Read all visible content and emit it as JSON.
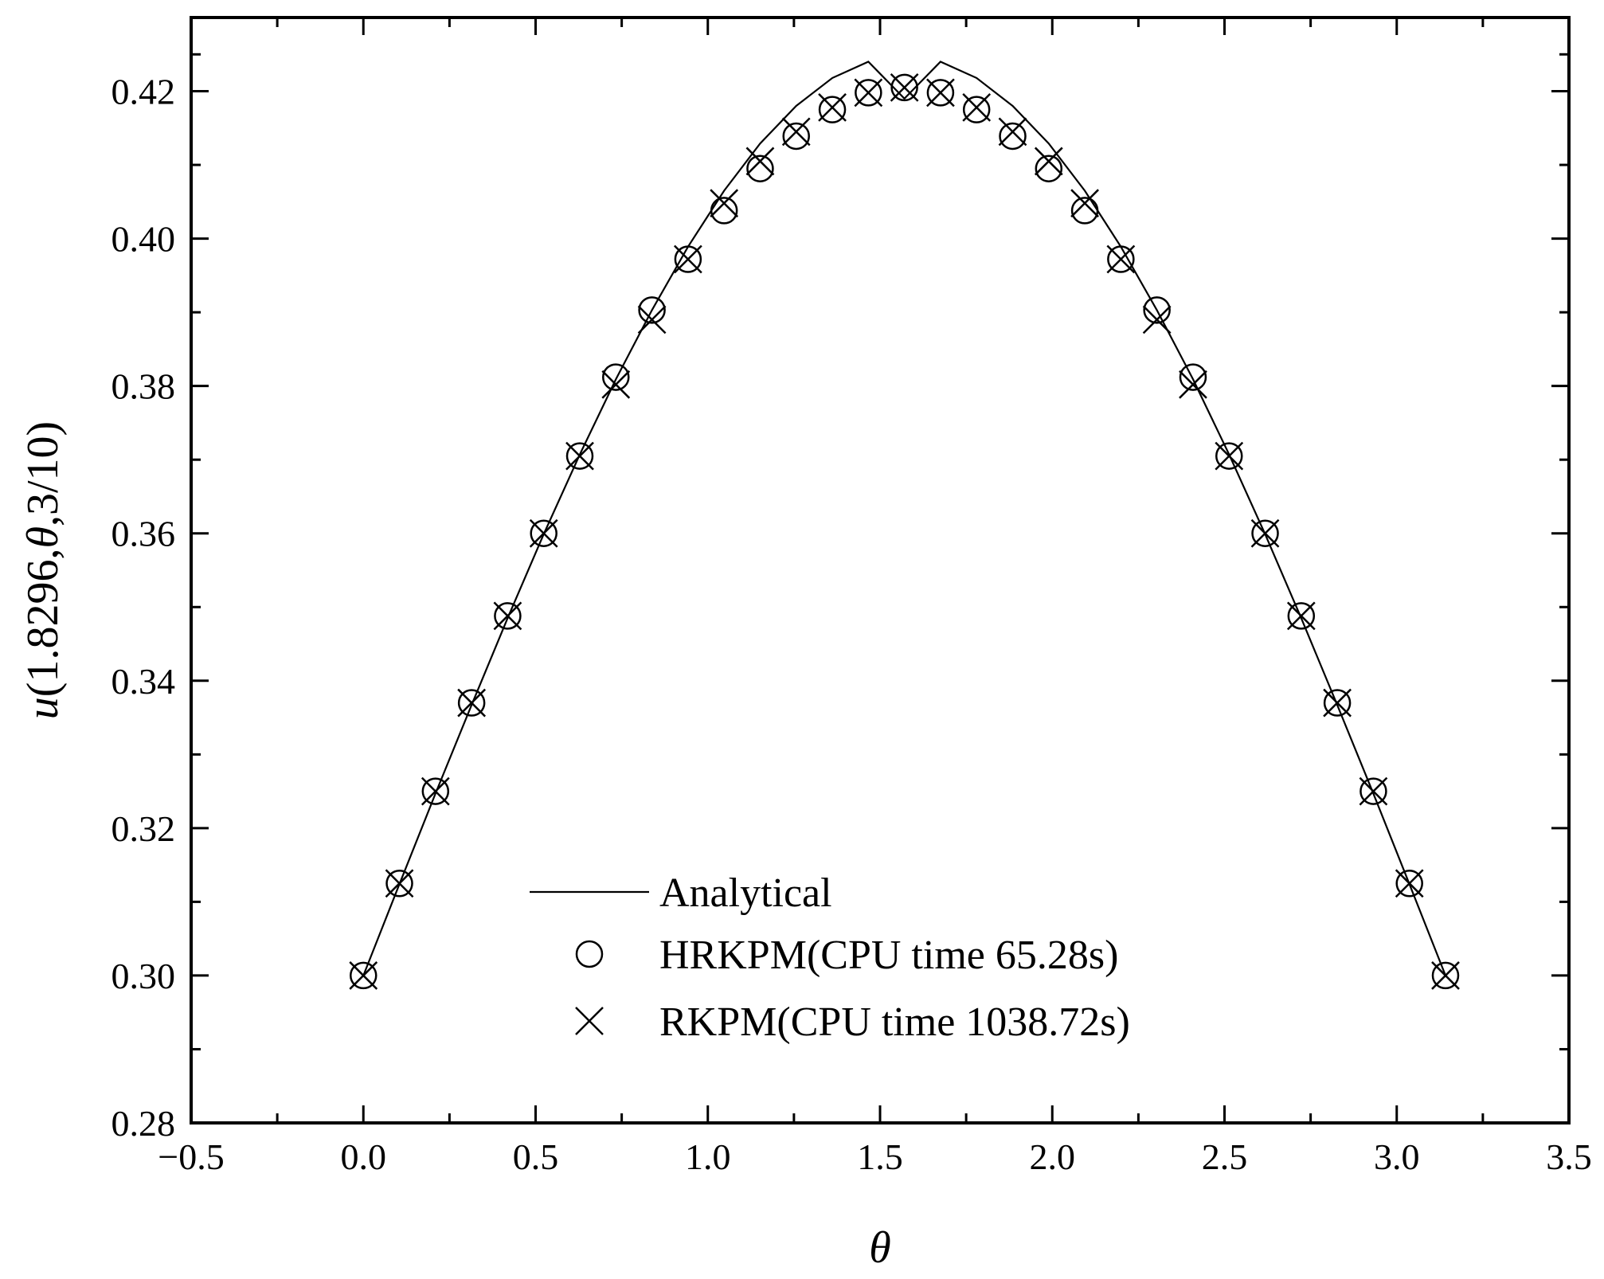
{
  "chart_data": {
    "type": "line",
    "xlabel": "θ",
    "ylabel": {
      "parts": [
        {
          "text": "u",
          "italic": true
        },
        {
          "text": "(1.8296,",
          "italic": false
        },
        {
          "text": "θ",
          "italic": true
        },
        {
          "text": ",3/10)",
          "italic": false
        }
      ]
    },
    "xlim": [
      -0.5,
      3.5
    ],
    "ylim": [
      0.28,
      0.43
    ],
    "xticks": [
      -0.5,
      0.0,
      0.5,
      1.0,
      1.5,
      2.0,
      2.5,
      3.0,
      3.5
    ],
    "xtick_labels": [
      "−0.5",
      "0.0",
      "0.5",
      "1.0",
      "1.5",
      "2.0",
      "2.5",
      "3.0",
      "3.5"
    ],
    "yticks": [
      0.28,
      0.3,
      0.32,
      0.34,
      0.36,
      0.38,
      0.4,
      0.42
    ],
    "ytick_labels": [
      "0.28",
      "0.30",
      "0.32",
      "0.34",
      "0.36",
      "0.38",
      "0.40",
      "0.42"
    ],
    "grid": false,
    "legend_position": "bottom-center",
    "series": [
      {
        "name": "Analytical",
        "style": "line",
        "color": "#000000",
        "x": [
          0.0,
          0.1047,
          0.2094,
          0.3142,
          0.4189,
          0.5236,
          0.6283,
          0.733,
          0.8378,
          0.9425,
          1.0472,
          1.1519,
          1.2566,
          1.3614,
          1.4661,
          1.5708,
          1.6755,
          1.7802,
          1.885,
          1.9897,
          2.0944,
          2.1991,
          2.3038,
          2.4086,
          2.5133,
          2.618,
          2.7227,
          2.8274,
          2.9322,
          3.0369,
          3.1416
        ],
        "y": [
          0.3,
          0.3124,
          0.3247,
          0.3367,
          0.3485,
          0.3599,
          0.3707,
          0.3809,
          0.3903,
          0.3989,
          0.4065,
          0.4129,
          0.418,
          0.4218,
          0.424,
          0.419,
          0.424,
          0.4218,
          0.418,
          0.4129,
          0.4065,
          0.3989,
          0.3903,
          0.3809,
          0.3707,
          0.3599,
          0.3485,
          0.3367,
          0.3247,
          0.3124,
          0.3
        ]
      },
      {
        "name": "HRKPM(CPU time 65.28s)",
        "style": "circle",
        "color": "#000000",
        "x": [
          0.0,
          0.1047,
          0.2094,
          0.3142,
          0.4189,
          0.5236,
          0.6283,
          0.733,
          0.8378,
          0.9425,
          1.0472,
          1.1519,
          1.2566,
          1.3614,
          1.4661,
          1.5708,
          1.6755,
          1.7802,
          1.885,
          1.9897,
          2.0944,
          2.1991,
          2.3038,
          2.4086,
          2.5133,
          2.618,
          2.7227,
          2.8274,
          2.9322,
          3.0369,
          3.1416
        ],
        "y": [
          0.3,
          0.3125,
          0.325,
          0.337,
          0.3488,
          0.36,
          0.3705,
          0.3812,
          0.3903,
          0.3972,
          0.4038,
          0.4095,
          0.4139,
          0.4175,
          0.4198,
          0.4205,
          0.4198,
          0.4175,
          0.4139,
          0.4095,
          0.4038,
          0.3972,
          0.3903,
          0.3812,
          0.3705,
          0.36,
          0.3488,
          0.337,
          0.325,
          0.3125,
          0.3
        ]
      },
      {
        "name": "RKPM(CPU time 1038.72s)",
        "style": "cross",
        "color": "#000000",
        "x": [
          0.0,
          0.1047,
          0.2094,
          0.3142,
          0.4189,
          0.5236,
          0.6283,
          0.733,
          0.8378,
          0.9425,
          1.0472,
          1.1519,
          1.2566,
          1.3614,
          1.4661,
          1.5708,
          1.6755,
          1.7802,
          1.885,
          1.9897,
          2.0944,
          2.1991,
          2.3038,
          2.4086,
          2.5133,
          2.618,
          2.7227,
          2.8274,
          2.9322,
          3.0369,
          3.1416
        ],
        "y": [
          0.3,
          0.3125,
          0.325,
          0.337,
          0.3488,
          0.36,
          0.3705,
          0.3802,
          0.389,
          0.3972,
          0.4048,
          0.4105,
          0.4145,
          0.4178,
          0.4198,
          0.4205,
          0.4198,
          0.4178,
          0.4145,
          0.4105,
          0.4048,
          0.3972,
          0.389,
          0.3802,
          0.3705,
          0.36,
          0.3488,
          0.337,
          0.325,
          0.3125,
          0.3
        ]
      }
    ]
  }
}
